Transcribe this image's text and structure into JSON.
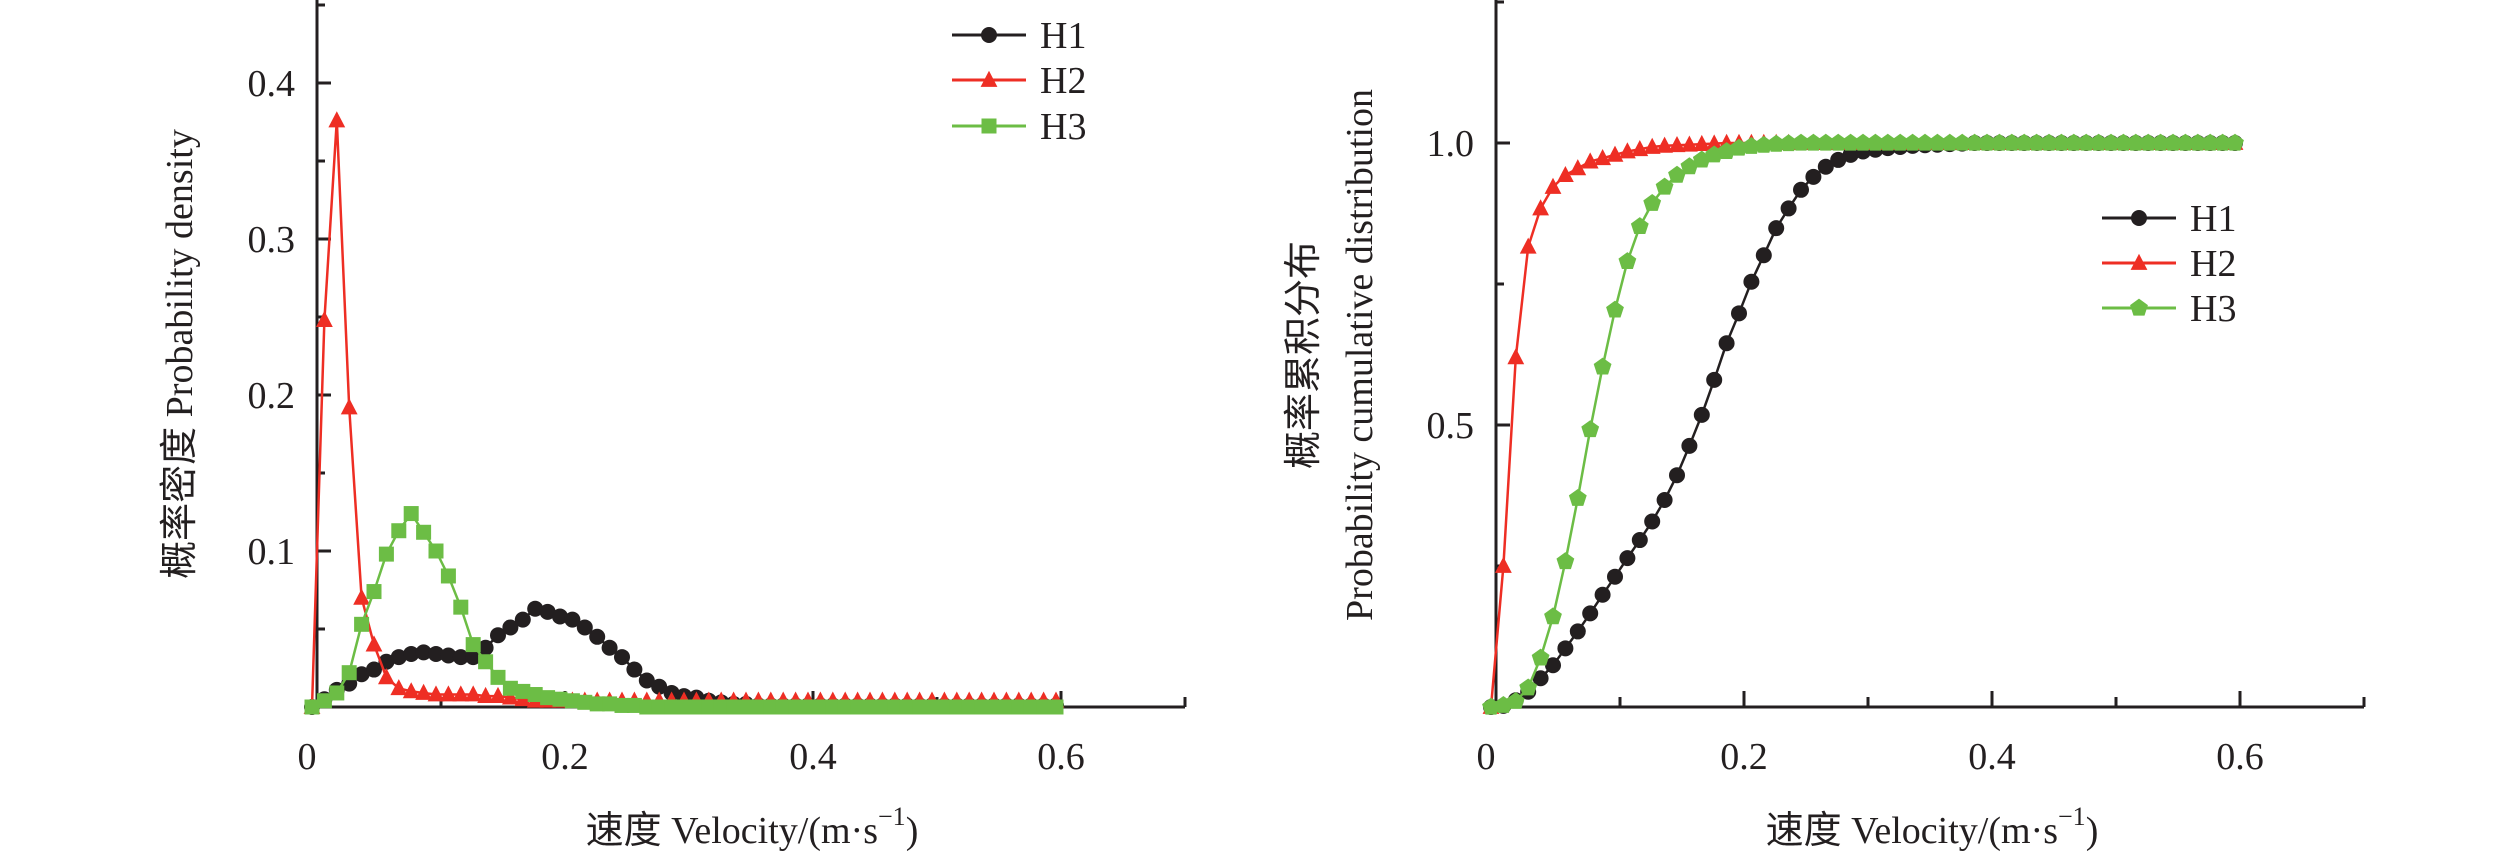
{
  "chart_data": [
    {
      "type": "line",
      "title": "",
      "xlabel": "速度 Velocity/(m·s⁻¹)",
      "xlabel_parts": {
        "main": "速度 Velocity/(m·s",
        "sup": "−1",
        "close": ")"
      },
      "ylabel": "概率密度 Probability density",
      "xlim": [
        0,
        0.7
      ],
      "ylim": [
        0,
        0.45
      ],
      "x_ticks": [
        {
          "value": 0,
          "label": "0"
        },
        {
          "value": 0.2,
          "label": "0.2"
        },
        {
          "value": 0.4,
          "label": "0.4"
        },
        {
          "value": 0.6,
          "label": "0.6"
        }
      ],
      "x_minor_ticks": [
        0.1,
        0.3,
        0.5,
        0.7
      ],
      "y_ticks": [
        {
          "value": 0.1,
          "label": "0.1"
        },
        {
          "value": 0.2,
          "label": "0.2"
        },
        {
          "value": 0.3,
          "label": "0.3"
        },
        {
          "value": 0.4,
          "label": "0.4"
        }
      ],
      "y_minor_ticks": [
        0.05,
        0.15,
        0.25,
        0.35,
        0.45
      ],
      "grid": false,
      "legend_position": "top-right",
      "x_step": 0.01,
      "series": [
        {
          "name": "H1",
          "color": "#231f20",
          "marker": "circle",
          "values": [
            0,
            0.005,
            0.011,
            0.015,
            0.021,
            0.024,
            0.029,
            0.032,
            0.034,
            0.035,
            0.034,
            0.033,
            0.032,
            0.032,
            0.038,
            0.046,
            0.051,
            0.056,
            0.063,
            0.061,
            0.058,
            0.056,
            0.051,
            0.045,
            0.038,
            0.032,
            0.024,
            0.017,
            0.013,
            0.009,
            0.007,
            0.006,
            0.004,
            0.003,
            0.002,
            0.002,
            0.001,
            0.001,
            0.001,
            0.001,
            0.001,
            0.001,
            0.001,
            0.001,
            0.001,
            0.001,
            0.001,
            0.001,
            0.001,
            0.001,
            0.001,
            0.001,
            0.001,
            0.001,
            0.001,
            0.001,
            0.001,
            0.001,
            0.001,
            0.001,
            0.001
          ]
        },
        {
          "name": "H2",
          "color": "#ee2e24",
          "marker": "triangle",
          "values": [
            0,
            0.248,
            0.376,
            0.192,
            0.07,
            0.04,
            0.019,
            0.012,
            0.01,
            0.009,
            0.008,
            0.008,
            0.008,
            0.008,
            0.007,
            0.007,
            0.006,
            0.005,
            0.004,
            0.004,
            0.004,
            0.004,
            0.004,
            0.004,
            0.004,
            0.004,
            0.004,
            0.004,
            0.004,
            0.004,
            0.004,
            0.004,
            0.004,
            0.004,
            0.004,
            0.004,
            0.004,
            0.004,
            0.004,
            0.004,
            0.004,
            0.004,
            0.004,
            0.004,
            0.004,
            0.004,
            0.004,
            0.004,
            0.004,
            0.004,
            0.004,
            0.004,
            0.004,
            0.004,
            0.004,
            0.004,
            0.004,
            0.004,
            0.004,
            0.004,
            0.004
          ]
        },
        {
          "name": "H3",
          "color": "#6cbd45",
          "marker": "square",
          "values": [
            0,
            0.004,
            0.009,
            0.022,
            0.053,
            0.074,
            0.098,
            0.113,
            0.124,
            0.112,
            0.1,
            0.084,
            0.064,
            0.04,
            0.029,
            0.019,
            0.012,
            0.01,
            0.008,
            0.006,
            0.005,
            0.004,
            0.003,
            0.002,
            0.002,
            0.001,
            0.001,
            0,
            0,
            0,
            0,
            0,
            0,
            0,
            0,
            0,
            0,
            0,
            0,
            0,
            0,
            0,
            0,
            0,
            0,
            0,
            0,
            0,
            0,
            0,
            0,
            0,
            0,
            0,
            0,
            0,
            0,
            0,
            0,
            0,
            0
          ]
        }
      ]
    },
    {
      "type": "line",
      "title": "",
      "xlabel": "速度 Velocity/(m·s⁻¹)",
      "xlabel_parts": {
        "main": "速度 Velocity/(m·s",
        "sup": "−1",
        "close": ")"
      },
      "ylabel": "概率累积分布 Probability cumulative distribution",
      "ylabel_lines": [
        "概率累积分布",
        "Probability cumulative distribution"
      ],
      "xlim": [
        0,
        0.7
      ],
      "ylim": [
        0,
        1.25
      ],
      "x_ticks": [
        {
          "value": 0,
          "label": "0"
        },
        {
          "value": 0.2,
          "label": "0.2"
        },
        {
          "value": 0.4,
          "label": "0.4"
        },
        {
          "value": 0.6,
          "label": "0.6"
        }
      ],
      "x_minor_ticks": [
        0.1,
        0.3,
        0.5,
        0.7
      ],
      "y_ticks": [
        {
          "value": 0.5,
          "label": "0.5"
        },
        {
          "value": 1.0,
          "label": "1.0"
        }
      ],
      "y_minor_ticks": [
        0.25,
        0.75,
        1.25
      ],
      "grid": false,
      "legend_position": "right",
      "x_step": 0.01,
      "series": [
        {
          "name": "H1",
          "color": "#231f20",
          "marker": "circle",
          "values": [
            0,
            0.002,
            0.012,
            0.027,
            0.051,
            0.074,
            0.104,
            0.134,
            0.166,
            0.199,
            0.231,
            0.264,
            0.296,
            0.329,
            0.367,
            0.411,
            0.463,
            0.518,
            0.58,
            0.645,
            0.698,
            0.754,
            0.801,
            0.849,
            0.884,
            0.917,
            0.94,
            0.958,
            0.97,
            0.979,
            0.985,
            0.988,
            0.991,
            0.993,
            0.995,
            0.996,
            0.997,
            0.998,
            0.999,
            1,
            1,
            1,
            1,
            1,
            1,
            1,
            1,
            1,
            1,
            1,
            1,
            1,
            1,
            1,
            1,
            1,
            1,
            1,
            1,
            1,
            1
          ]
        },
        {
          "name": "H2",
          "color": "#ee2e24",
          "marker": "triangle",
          "values": [
            0,
            0.25,
            0.62,
            0.816,
            0.884,
            0.922,
            0.943,
            0.955,
            0.967,
            0.973,
            0.979,
            0.985,
            0.989,
            0.993,
            0.995,
            0.996,
            0.997,
            0.998,
            0.999,
            1,
            1,
            1,
            1,
            1,
            1,
            1,
            1,
            1,
            1,
            1,
            1,
            1,
            1,
            1,
            1,
            1,
            1,
            1,
            1,
            1,
            1,
            1,
            1,
            1,
            1,
            1,
            1,
            1,
            1,
            1,
            1,
            1,
            1,
            1,
            1,
            1,
            1,
            1,
            1,
            1,
            1
          ]
        },
        {
          "name": "H3",
          "color": "#6cbd45",
          "marker": "pentagon",
          "values": [
            0,
            0.003,
            0.01,
            0.034,
            0.087,
            0.16,
            0.258,
            0.37,
            0.492,
            0.603,
            0.704,
            0.79,
            0.852,
            0.893,
            0.922,
            0.943,
            0.958,
            0.97,
            0.979,
            0.985,
            0.991,
            0.994,
            0.996,
            0.998,
            0.999,
            1,
            1,
            1,
            1,
            1,
            1,
            1,
            1,
            1,
            1,
            1,
            1,
            1,
            1,
            1,
            1,
            1,
            1,
            1,
            1,
            1,
            1,
            1,
            1,
            1,
            1,
            1,
            1,
            1,
            1,
            1,
            1,
            1,
            1,
            1,
            1
          ]
        }
      ]
    }
  ]
}
